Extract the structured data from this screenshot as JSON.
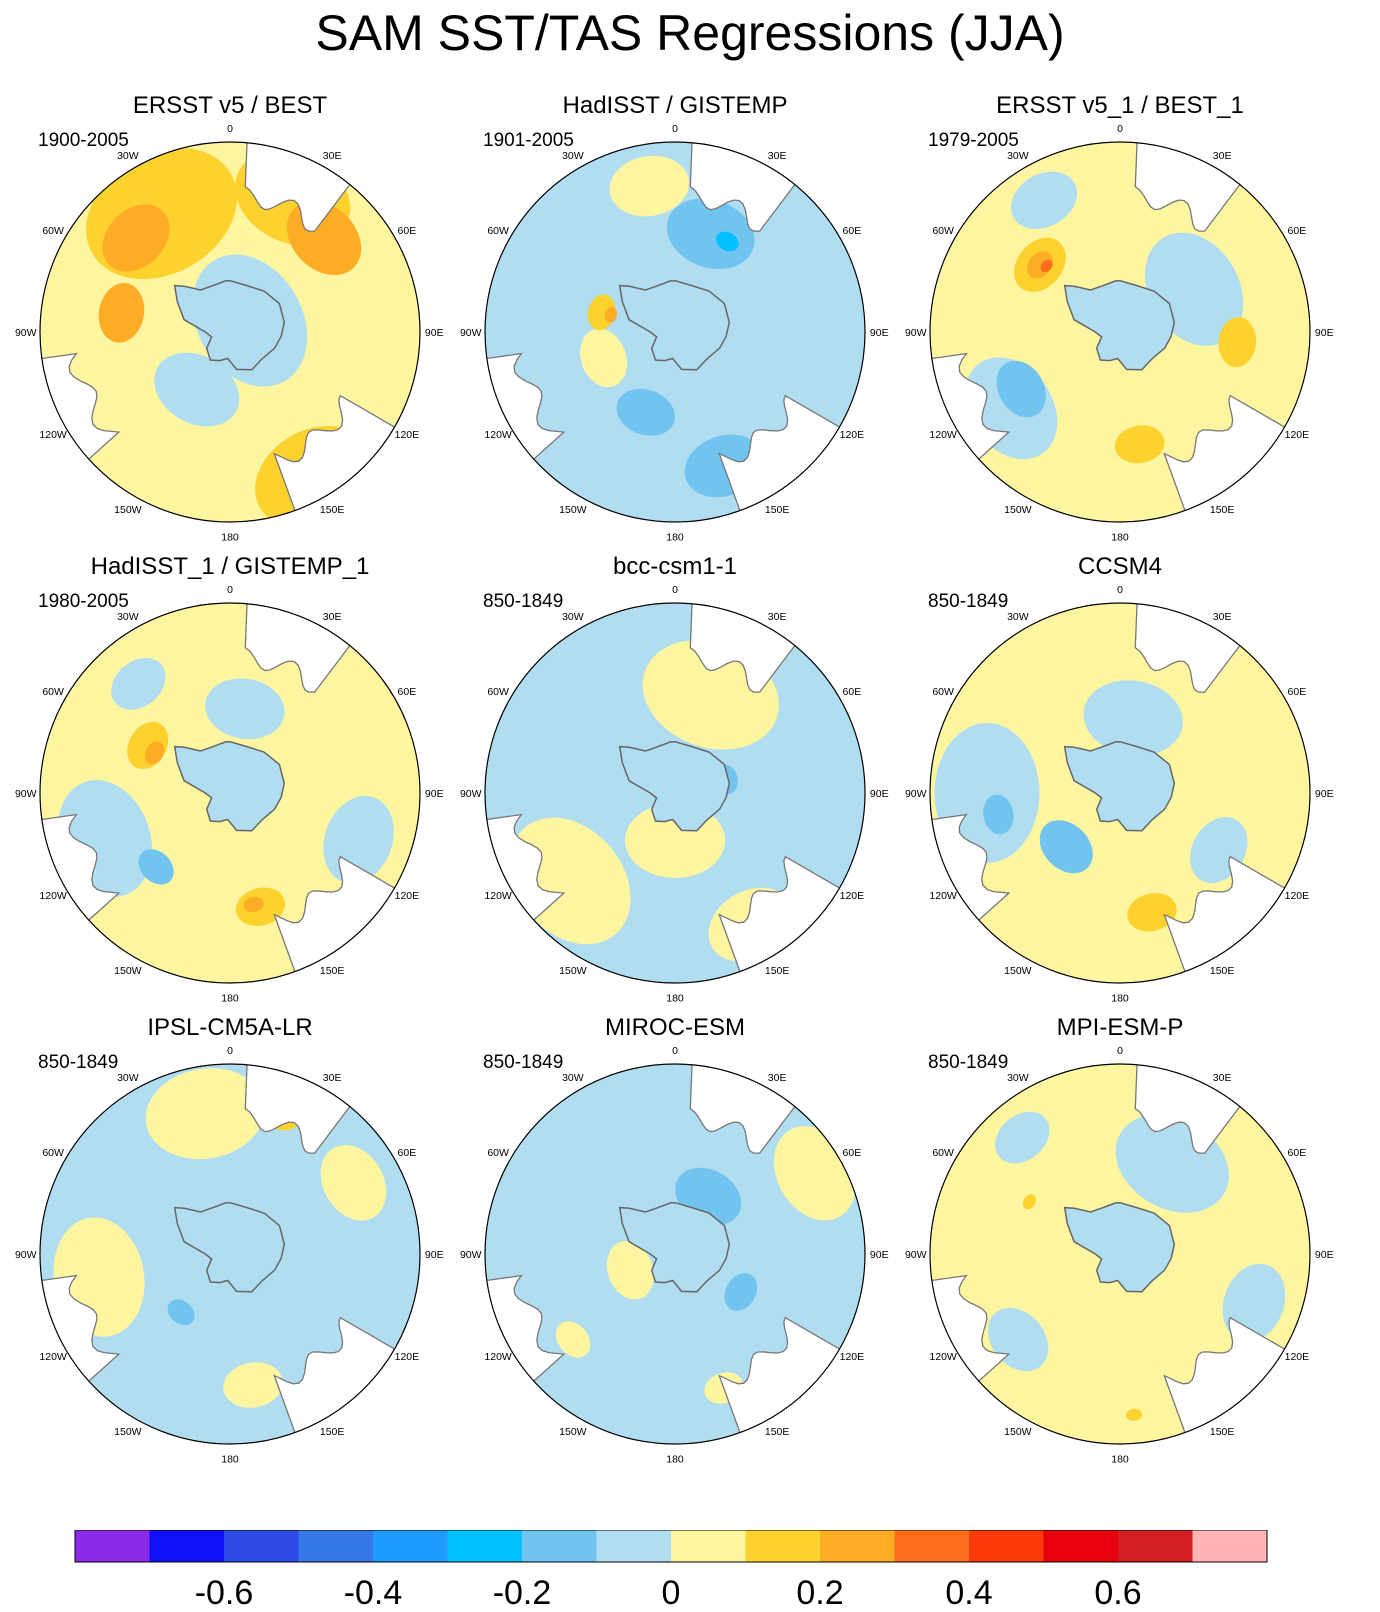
{
  "title": "SAM SST/TAS Regressions (JJA)",
  "longitude_labels": [
    "0",
    "30E",
    "60E",
    "90E",
    "120E",
    "150E",
    "180",
    "150W",
    "120W",
    "90W",
    "60W",
    "30W"
  ],
  "panels": [
    {
      "title": "ERSST v5 / BEST",
      "period": "1900-2005",
      "bg": "#fef5a0",
      "blobs": [
        {
          "c": "#fdd12e",
          "r": 0.88,
          "a": 150,
          "w": 62
        },
        {
          "c": "#fdd12e",
          "r": 0.72,
          "a": 330,
          "w": 80
        },
        {
          "c": "#fdd12e",
          "r": 0.78,
          "a": 25,
          "w": 60
        },
        {
          "c": "#fdac26",
          "r": 0.7,
          "a": 315,
          "w": 38
        },
        {
          "c": "#fdac26",
          "r": 0.7,
          "a": 45,
          "w": 42
        },
        {
          "c": "#fdac26",
          "r": 0.58,
          "a": 280,
          "w": 30
        },
        {
          "c": "#b0ddef",
          "r": 0.35,
          "a": 210,
          "w": 45
        },
        {
          "c": "#b0ddef",
          "r": 0.12,
          "a": 60,
          "w": 70
        }
      ]
    },
    {
      "title": "HadISST / GISTEMP",
      "period": "1901-2005",
      "bg": "#b0ddef",
      "blobs": [
        {
          "c": "#fef5a0",
          "r": 0.78,
          "a": 350,
          "w": 40
        },
        {
          "c": "#fef5a0",
          "r": 0.4,
          "a": 250,
          "w": 30
        },
        {
          "c": "#72c4f0",
          "r": 0.55,
          "a": 20,
          "w": 45
        },
        {
          "c": "#72c4f0",
          "r": 0.75,
          "a": 160,
          "w": 40
        },
        {
          "c": "#72c4f0",
          "r": 0.45,
          "a": 200,
          "w": 30
        },
        {
          "c": "#fdd12e",
          "r": 0.4,
          "a": 285,
          "w": 18
        },
        {
          "c": "#fdac26",
          "r": 0.35,
          "a": 285,
          "w": 8
        },
        {
          "c": "#00c1ff",
          "r": 0.55,
          "a": 30,
          "w": 12
        }
      ]
    },
    {
      "title": "ERSST v5_1 / BEST_1",
      "period": "1979-2005",
      "bg": "#fef5a0",
      "blobs": [
        {
          "c": "#b0ddef",
          "r": 0.7,
          "a": 235,
          "w": 55
        },
        {
          "c": "#b0ddef",
          "r": 0.45,
          "a": 60,
          "w": 60
        },
        {
          "c": "#b0ddef",
          "r": 0.8,
          "a": 330,
          "w": 35
        },
        {
          "c": "#72c4f0",
          "r": 0.6,
          "a": 240,
          "w": 30
        },
        {
          "c": "#fdd12e",
          "r": 0.55,
          "a": 310,
          "w": 30
        },
        {
          "c": "#fdac26",
          "r": 0.55,
          "a": 310,
          "w": 15
        },
        {
          "c": "#fd6e1c",
          "r": 0.52,
          "a": 312,
          "w": 7
        },
        {
          "c": "#fdd12e",
          "r": 0.62,
          "a": 95,
          "w": 25
        },
        {
          "c": "#fdd12e",
          "r": 0.6,
          "a": 170,
          "w": 25
        }
      ]
    },
    {
      "title": "HadISST_1 / GISTEMP_1",
      "period": "1980-2005",
      "bg": "#fef5a0",
      "blobs": [
        {
          "c": "#b0ddef",
          "r": 0.7,
          "a": 250,
          "w": 60
        },
        {
          "c": "#b0ddef",
          "r": 0.72,
          "a": 110,
          "w": 45
        },
        {
          "c": "#b0ddef",
          "r": 0.45,
          "a": 10,
          "w": 40
        },
        {
          "c": "#b0ddef",
          "r": 0.75,
          "a": 320,
          "w": 30
        },
        {
          "c": "#72c4f0",
          "r": 0.55,
          "a": 225,
          "w": 20
        },
        {
          "c": "#fdd12e",
          "r": 0.5,
          "a": 300,
          "w": 25
        },
        {
          "c": "#fdac26",
          "r": 0.45,
          "a": 298,
          "w": 12
        },
        {
          "c": "#fdd12e",
          "r": 0.62,
          "a": 165,
          "w": 25
        },
        {
          "c": "#fdac26",
          "r": 0.6,
          "a": 168,
          "w": 10
        }
      ]
    },
    {
      "title": "bcc-csm1-1",
      "period": "850-1849",
      "bg": "#b0ddef",
      "blobs": [
        {
          "c": "#fef5a0",
          "r": 0.55,
          "a": 20,
          "w": 70
        },
        {
          "c": "#fef5a0",
          "r": 0.72,
          "a": 230,
          "w": 70
        },
        {
          "c": "#fef5a0",
          "r": 0.8,
          "a": 150,
          "w": 45
        },
        {
          "c": "#fef5a0",
          "r": 0.25,
          "a": 180,
          "w": 50
        },
        {
          "c": "#72c4f0",
          "r": 0.28,
          "a": 75,
          "w": 15
        }
      ]
    },
    {
      "title": "CCSM4",
      "period": "850-1849",
      "bg": "#fef5a0",
      "blobs": [
        {
          "c": "#b0ddef",
          "r": 0.7,
          "a": 270,
          "w": 70
        },
        {
          "c": "#b0ddef",
          "r": 0.4,
          "a": 10,
          "w": 50
        },
        {
          "c": "#b0ddef",
          "r": 0.6,
          "a": 120,
          "w": 35
        },
        {
          "c": "#72c4f0",
          "r": 0.4,
          "a": 225,
          "w": 30
        },
        {
          "c": "#72c4f0",
          "r": 0.65,
          "a": 260,
          "w": 20
        },
        {
          "c": "#fdd12e",
          "r": 0.65,
          "a": 165,
          "w": 25
        }
      ]
    },
    {
      "title": "IPSL-CM5A-LR",
      "period": "850-1849",
      "bg": "#b0ddef",
      "blobs": [
        {
          "c": "#fef5a0",
          "r": 0.75,
          "a": 350,
          "w": 60
        },
        {
          "c": "#fef5a0",
          "r": 0.7,
          "a": 260,
          "w": 60
        },
        {
          "c": "#fef5a0",
          "r": 0.75,
          "a": 60,
          "w": 40
        },
        {
          "c": "#fef5a0",
          "r": 0.7,
          "a": 170,
          "w": 30
        },
        {
          "c": "#fdd12e",
          "r": 0.78,
          "a": 20,
          "w": 20
        },
        {
          "c": "#72c4f0",
          "r": 0.4,
          "a": 220,
          "w": 15
        }
      ]
    },
    {
      "title": "MIROC-ESM",
      "period": "850-1849",
      "bg": "#b0ddef",
      "blobs": [
        {
          "c": "#fef5a0",
          "r": 0.85,
          "a": 60,
          "w": 50
        },
        {
          "c": "#fef5a0",
          "r": 0.7,
          "a": 230,
          "w": 20
        },
        {
          "c": "#fef5a0",
          "r": 0.25,
          "a": 250,
          "w": 30
        },
        {
          "c": "#fef5a0",
          "r": 0.75,
          "a": 160,
          "w": 20
        },
        {
          "c": "#72c4f0",
          "r": 0.35,
          "a": 30,
          "w": 35
        },
        {
          "c": "#72c4f0",
          "r": 0.4,
          "a": 120,
          "w": 20
        }
      ]
    },
    {
      "title": "MPI-ESM-P",
      "period": "850-1849",
      "bg": "#fef5a0",
      "blobs": [
        {
          "c": "#b0ddef",
          "r": 0.55,
          "a": 30,
          "w": 60
        },
        {
          "c": "#b0ddef",
          "r": 0.75,
          "a": 110,
          "w": 40
        },
        {
          "c": "#b0ddef",
          "r": 0.7,
          "a": 230,
          "w": 35
        },
        {
          "c": "#b0ddef",
          "r": 0.8,
          "a": 320,
          "w": 30
        },
        {
          "c": "#fdd12e",
          "r": 0.55,
          "a": 300,
          "w": 8
        },
        {
          "c": "#fdd12e",
          "r": 0.85,
          "a": 175,
          "w": 8
        }
      ]
    }
  ],
  "chart_data": {
    "type": "heatmap",
    "projection": "south polar stereographic",
    "colorbar": {
      "levels": [
        -0.7,
        -0.6,
        -0.5,
        -0.4,
        -0.3,
        -0.2,
        -0.1,
        0,
        0.1,
        0.2,
        0.3,
        0.4,
        0.5,
        0.6,
        0.7
      ],
      "colors": [
        "#8a2be9",
        "#1010f8",
        "#2d4ae8",
        "#3478e8",
        "#1e9bfc",
        "#00c1ff",
        "#72c4f0",
        "#b0ddef",
        "#fef5a0",
        "#fdd12e",
        "#fdac26",
        "#fd6e1c",
        "#fd3a0c",
        "#e8000e",
        "#d31f21",
        "#ffb5b5"
      ],
      "tick_labels": [
        "-0.6",
        "-0.4",
        "-0.2",
        "0",
        "0.2",
        "0.4",
        "0.6"
      ],
      "tick_values": [
        -0.6,
        -0.4,
        -0.2,
        0,
        0.2,
        0.4,
        0.6
      ]
    }
  }
}
